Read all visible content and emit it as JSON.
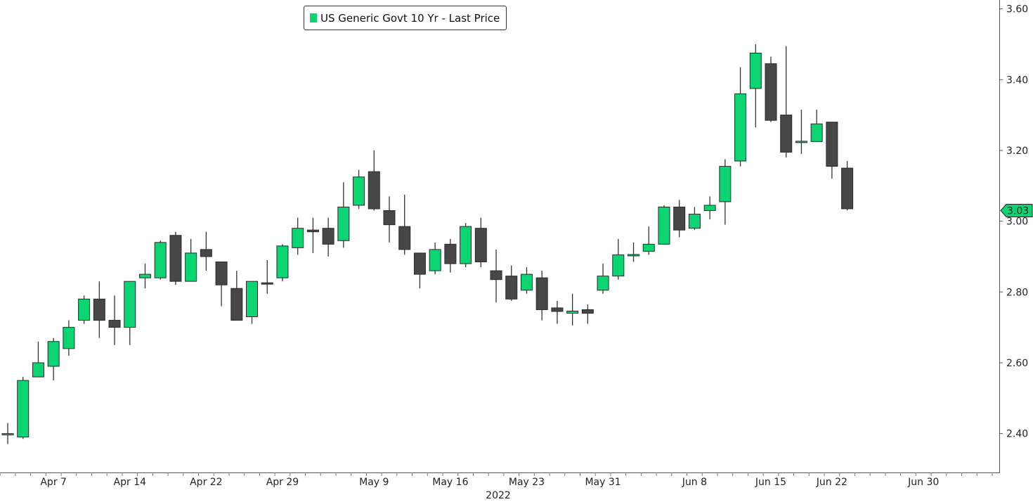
{
  "chart_data": {
    "type": "candlestick",
    "title": "",
    "legend": {
      "label": "US Generic Govt 10 Yr - Last Price",
      "position": "top-center"
    },
    "year_label": "2022",
    "colors": {
      "up": "#0ad572",
      "down": "#474747",
      "axis": "#555555",
      "last_tag": "#0ad572"
    },
    "ylim": [
      2.29,
      3.625
    ],
    "y_ticks": [
      "2.40",
      "2.60",
      "2.80",
      "3.00",
      "3.20",
      "3.40",
      "3.60"
    ],
    "x_ticks": [
      {
        "label": "Apr 7",
        "index": 3
      },
      {
        "label": "Apr 14",
        "index": 8
      },
      {
        "label": "Apr 22",
        "index": 13
      },
      {
        "label": "Apr 29",
        "index": 18
      },
      {
        "label": "May 9",
        "index": 24
      },
      {
        "label": "May 16",
        "index": 29
      },
      {
        "label": "May 23",
        "index": 34
      },
      {
        "label": "May 31",
        "index": 39
      },
      {
        "label": "Jun 8",
        "index": 45
      },
      {
        "label": "Jun 15",
        "index": 50
      },
      {
        "label": "Jun 22",
        "index": 54
      },
      {
        "label": "Jun 30",
        "index": 60
      }
    ],
    "last_price": "3.03",
    "candles": [
      {
        "date": "Apr 4",
        "o": 2.4,
        "h": 2.43,
        "l": 2.37,
        "c": 2.4
      },
      {
        "date": "Apr 5",
        "o": 2.39,
        "h": 2.56,
        "l": 2.385,
        "c": 2.55
      },
      {
        "date": "Apr 6",
        "o": 2.56,
        "h": 2.66,
        "l": 2.56,
        "c": 2.6
      },
      {
        "date": "Apr 7",
        "o": 2.59,
        "h": 2.67,
        "l": 2.55,
        "c": 2.66
      },
      {
        "date": "Apr 8",
        "o": 2.64,
        "h": 2.72,
        "l": 2.62,
        "c": 2.7
      },
      {
        "date": "Apr 11",
        "o": 2.72,
        "h": 2.79,
        "l": 2.71,
        "c": 2.78
      },
      {
        "date": "Apr 12",
        "o": 2.78,
        "h": 2.83,
        "l": 2.67,
        "c": 2.72
      },
      {
        "date": "Apr 13",
        "o": 2.72,
        "h": 2.79,
        "l": 2.65,
        "c": 2.7
      },
      {
        "date": "Apr 14",
        "o": 2.7,
        "h": 2.83,
        "l": 2.65,
        "c": 2.83
      },
      {
        "date": "Apr 18",
        "o": 2.84,
        "h": 2.88,
        "l": 2.81,
        "c": 2.85
      },
      {
        "date": "Apr 19",
        "o": 2.84,
        "h": 2.945,
        "l": 2.835,
        "c": 2.94
      },
      {
        "date": "Apr 20",
        "o": 2.96,
        "h": 2.97,
        "l": 2.82,
        "c": 2.83
      },
      {
        "date": "Apr 21",
        "o": 2.83,
        "h": 2.95,
        "l": 2.83,
        "c": 2.91
      },
      {
        "date": "Apr 22",
        "o": 2.92,
        "h": 2.97,
        "l": 2.86,
        "c": 2.9
      },
      {
        "date": "Apr 25",
        "o": 2.885,
        "h": 2.885,
        "l": 2.76,
        "c": 2.82
      },
      {
        "date": "Apr 26",
        "o": 2.81,
        "h": 2.86,
        "l": 2.72,
        "c": 2.72
      },
      {
        "date": "Apr 27",
        "o": 2.73,
        "h": 2.83,
        "l": 2.71,
        "c": 2.83
      },
      {
        "date": "Apr 28",
        "o": 2.826,
        "h": 2.89,
        "l": 2.795,
        "c": 2.824
      },
      {
        "date": "Apr 29",
        "o": 2.84,
        "h": 2.935,
        "l": 2.83,
        "c": 2.93
      },
      {
        "date": "May 2",
        "o": 2.925,
        "h": 3.01,
        "l": 2.905,
        "c": 2.98
      },
      {
        "date": "May 3",
        "o": 2.975,
        "h": 3.01,
        "l": 2.91,
        "c": 2.97
      },
      {
        "date": "May 4",
        "o": 2.98,
        "h": 3.01,
        "l": 2.9,
        "c": 2.935
      },
      {
        "date": "May 5",
        "o": 2.945,
        "h": 3.11,
        "l": 2.925,
        "c": 3.04
      },
      {
        "date": "May 6",
        "o": 3.045,
        "h": 3.145,
        "l": 3.035,
        "c": 3.125
      },
      {
        "date": "May 9",
        "o": 3.14,
        "h": 3.2,
        "l": 3.03,
        "c": 3.035
      },
      {
        "date": "May 10",
        "o": 3.03,
        "h": 3.07,
        "l": 2.94,
        "c": 2.99
      },
      {
        "date": "May 11",
        "o": 2.985,
        "h": 3.075,
        "l": 2.905,
        "c": 2.92
      },
      {
        "date": "May 12",
        "o": 2.91,
        "h": 2.91,
        "l": 2.81,
        "c": 2.85
      },
      {
        "date": "May 13",
        "o": 2.86,
        "h": 2.94,
        "l": 2.85,
        "c": 2.92
      },
      {
        "date": "May 16",
        "o": 2.935,
        "h": 2.95,
        "l": 2.855,
        "c": 2.88
      },
      {
        "date": "May 17",
        "o": 2.88,
        "h": 2.995,
        "l": 2.87,
        "c": 2.985
      },
      {
        "date": "May 18",
        "o": 2.98,
        "h": 3.01,
        "l": 2.87,
        "c": 2.885
      },
      {
        "date": "May 19",
        "o": 2.86,
        "h": 2.92,
        "l": 2.77,
        "c": 2.835
      },
      {
        "date": "May 20",
        "o": 2.845,
        "h": 2.875,
        "l": 2.775,
        "c": 2.78
      },
      {
        "date": "May 23",
        "o": 2.805,
        "h": 2.87,
        "l": 2.795,
        "c": 2.85
      },
      {
        "date": "May 24",
        "o": 2.84,
        "h": 2.86,
        "l": 2.72,
        "c": 2.75
      },
      {
        "date": "May 25",
        "o": 2.755,
        "h": 2.775,
        "l": 2.71,
        "c": 2.745
      },
      {
        "date": "May 26",
        "o": 2.74,
        "h": 2.795,
        "l": 2.705,
        "c": 2.746
      },
      {
        "date": "May 27",
        "o": 2.75,
        "h": 2.765,
        "l": 2.71,
        "c": 2.74
      },
      {
        "date": "May 31",
        "o": 2.805,
        "h": 2.88,
        "l": 2.795,
        "c": 2.845
      },
      {
        "date": "Jun 1",
        "o": 2.845,
        "h": 2.95,
        "l": 2.835,
        "c": 2.905
      },
      {
        "date": "Jun 2",
        "o": 2.905,
        "h": 2.94,
        "l": 2.885,
        "c": 2.906
      },
      {
        "date": "Jun 3",
        "o": 2.915,
        "h": 2.985,
        "l": 2.905,
        "c": 2.935
      },
      {
        "date": "Jun 6",
        "o": 2.935,
        "h": 3.045,
        "l": 2.935,
        "c": 3.04
      },
      {
        "date": "Jun 7",
        "o": 3.04,
        "h": 3.06,
        "l": 2.955,
        "c": 2.975
      },
      {
        "date": "Jun 8",
        "o": 2.98,
        "h": 3.04,
        "l": 2.975,
        "c": 3.02
      },
      {
        "date": "Jun 9",
        "o": 3.03,
        "h": 3.07,
        "l": 3.005,
        "c": 3.045
      },
      {
        "date": "Jun 10",
        "o": 3.055,
        "h": 3.175,
        "l": 2.99,
        "c": 3.155
      },
      {
        "date": "Jun 13",
        "o": 3.17,
        "h": 3.435,
        "l": 3.155,
        "c": 3.36
      },
      {
        "date": "Jun 14",
        "o": 3.375,
        "h": 3.5,
        "l": 3.265,
        "c": 3.475
      },
      {
        "date": "Jun 15",
        "o": 3.445,
        "h": 3.465,
        "l": 3.28,
        "c": 3.285
      },
      {
        "date": "Jun 16",
        "o": 3.3,
        "h": 3.495,
        "l": 3.18,
        "c": 3.195
      },
      {
        "date": "Jun 17",
        "o": 3.225,
        "h": 3.315,
        "l": 3.19,
        "c": 3.226
      },
      {
        "date": "Jun 21",
        "o": 3.225,
        "h": 3.315,
        "l": 3.225,
        "c": 3.275
      },
      {
        "date": "Jun 22",
        "o": 3.28,
        "h": 3.28,
        "l": 3.12,
        "c": 3.155
      },
      {
        "date": "Jun 23",
        "o": 3.15,
        "h": 3.17,
        "l": 3.03,
        "c": 3.035
      }
    ]
  }
}
